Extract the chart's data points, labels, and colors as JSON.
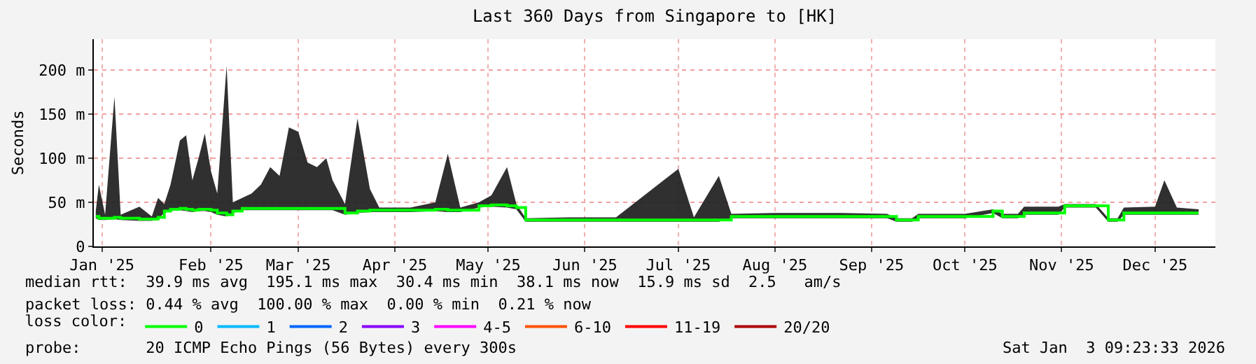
{
  "chart_data": {
    "type": "step",
    "title": "Last 360 Days from Singapore to [HK]",
    "ylabel": "Seconds",
    "legend_title": "loss color:",
    "x": [
      "2025-01-09",
      "2025-01-10",
      "2025-01-12",
      "2025-01-15",
      "2025-01-17",
      "2025-01-23",
      "2025-01-27",
      "2025-01-29",
      "2025-01-31",
      "2025-02-02",
      "2025-02-05",
      "2025-02-07",
      "2025-02-09",
      "2025-02-11",
      "2025-02-13",
      "2025-02-15",
      "2025-02-17",
      "2025-02-20",
      "2025-02-22",
      "2025-02-25",
      "2025-02-28",
      "2025-03-03",
      "2025-03-06",
      "2025-03-09",
      "2025-03-12",
      "2025-03-15",
      "2025-03-18",
      "2025-03-21",
      "2025-03-24",
      "2025-03-26",
      "2025-03-30",
      "2025-04-03",
      "2025-04-07",
      "2025-04-10",
      "2025-04-20",
      "2025-04-28",
      "2025-05-02",
      "2025-05-06",
      "2025-05-12",
      "2025-05-16",
      "2025-05-21",
      "2025-05-24",
      "2025-05-27",
      "2025-06-10",
      "2025-06-25",
      "2025-07-15",
      "2025-07-20",
      "2025-07-28",
      "2025-08-01",
      "2025-08-15",
      "2025-08-25",
      "2025-09-05",
      "2025-09-20",
      "2025-09-23",
      "2025-09-28",
      "2025-09-30",
      "2025-10-15",
      "2025-10-24",
      "2025-10-27",
      "2025-11-01",
      "2025-11-03",
      "2025-11-14",
      "2025-11-16",
      "2025-11-26",
      "2025-11-30",
      "2025-12-03",
      "2025-12-05",
      "2025-12-15",
      "2025-12-18",
      "2025-12-22",
      "2025-12-29"
    ],
    "series": [
      {
        "name": "0",
        "color": "#00ff00",
        "values": [
          34,
          32,
          32,
          33,
          32,
          31,
          31,
          33,
          40,
          42,
          43,
          42,
          41,
          42,
          42,
          41,
          38,
          36,
          40,
          43,
          43,
          43,
          43,
          43,
          43,
          43,
          43,
          43,
          43,
          43,
          38,
          40,
          41,
          41,
          41,
          42,
          41,
          41,
          46,
          47,
          46,
          44,
          30,
          30,
          30,
          30,
          30,
          30,
          34,
          34,
          34,
          34,
          34,
          30,
          30,
          34,
          34,
          40,
          34,
          34,
          38,
          38,
          46,
          46,
          30,
          30,
          38,
          38,
          38,
          38,
          38
        ],
        "lower": [
          32,
          30,
          30,
          31,
          30,
          29,
          29,
          31,
          38,
          40,
          41,
          40,
          39,
          40,
          40,
          39,
          36,
          34,
          38,
          41,
          41,
          41,
          41,
          41,
          41,
          41,
          41,
          41,
          41,
          41,
          36,
          38,
          39,
          39,
          39,
          40,
          39,
          39,
          44,
          45,
          44,
          42,
          28,
          28,
          28,
          28,
          28,
          28,
          32,
          32,
          32,
          32,
          32,
          28,
          28,
          32,
          32,
          38,
          32,
          32,
          36,
          36,
          44,
          44,
          28,
          28,
          36,
          36,
          36,
          36,
          36
        ],
        "upper": [
          40,
          70,
          36,
          170,
          36,
          45,
          34,
          55,
          48,
          70,
          120,
          126,
          75,
          100,
          128,
          85,
          60,
          205,
          50,
          55,
          60,
          70,
          90,
          80,
          135,
          130,
          95,
          90,
          100,
          75,
          48,
          145,
          65,
          44,
          44,
          50,
          105,
          44,
          50,
          58,
          90,
          48,
          32,
          33,
          33,
          88,
          33,
          80,
          37,
          38,
          38,
          38,
          37,
          32,
          32,
          37,
          37,
          42,
          37,
          37,
          45,
          45,
          48,
          48,
          32,
          32,
          44,
          45,
          75,
          44,
          42
        ]
      },
      {
        "name": "1",
        "color": "#00bbff",
        "values": [
          null,
          null,
          null,
          null,
          null,
          null,
          null,
          null,
          null,
          null,
          null,
          null,
          null,
          null,
          null,
          null,
          null,
          null,
          null,
          null,
          null,
          null,
          null,
          null,
          null,
          null,
          null,
          null,
          null,
          null,
          null,
          null,
          null,
          null,
          null,
          null,
          null,
          null,
          null,
          null,
          null,
          null,
          null,
          null,
          null,
          null,
          null,
          null,
          null,
          null,
          null,
          null,
          null,
          null,
          null,
          null,
          null,
          null,
          null,
          null,
          null,
          null,
          null,
          null,
          null,
          null,
          null,
          null,
          null,
          null,
          null
        ]
      },
      {
        "name": "2",
        "color": "#0066ff",
        "values": [
          null,
          null,
          null,
          null,
          null,
          null,
          null,
          null,
          null,
          null,
          null,
          null,
          null,
          null,
          null,
          null,
          null,
          null,
          null,
          null,
          null,
          null,
          null,
          null,
          null,
          null,
          null,
          null,
          null,
          null,
          null,
          null,
          null,
          null,
          null,
          null,
          null,
          null,
          null,
          null,
          null,
          null,
          null,
          null,
          null,
          null,
          null,
          null,
          null,
          null,
          null,
          null,
          null,
          null,
          null,
          null,
          null,
          null,
          null,
          null,
          null,
          null,
          null,
          null,
          null,
          null,
          null,
          null,
          null,
          null,
          null
        ]
      },
      {
        "name": "3",
        "color": "#8800ff",
        "values": [
          null,
          null,
          null,
          null,
          null,
          null,
          null,
          null,
          null,
          null,
          null,
          null,
          null,
          null,
          null,
          null,
          null,
          null,
          null,
          null,
          null,
          null,
          null,
          null,
          null,
          null,
          null,
          null,
          null,
          null,
          null,
          null,
          null,
          null,
          null,
          null,
          null,
          null,
          null,
          null,
          null,
          null,
          null,
          null,
          null,
          null,
          null,
          null,
          null,
          null,
          null,
          null,
          null,
          null,
          null,
          null,
          null,
          null,
          null,
          null,
          null,
          null,
          null,
          null,
          null,
          null,
          null,
          null,
          null,
          null,
          null
        ]
      },
      {
        "name": "4-5",
        "color": "#ff00ff",
        "values": [
          null,
          null,
          null,
          null,
          null,
          null,
          null,
          null,
          null,
          null,
          null,
          null,
          null,
          null,
          null,
          null,
          null,
          null,
          null,
          null,
          null,
          null,
          null,
          null,
          null,
          null,
          null,
          null,
          null,
          null,
          null,
          null,
          null,
          null,
          null,
          null,
          null,
          null,
          null,
          null,
          null,
          null,
          null,
          null,
          null,
          null,
          null,
          null,
          null,
          null,
          null,
          null,
          null,
          null,
          null,
          null,
          null,
          null,
          null,
          null,
          null,
          null,
          null,
          null,
          null,
          null,
          null,
          null,
          null,
          null,
          null
        ]
      },
      {
        "name": "6-10",
        "color": "#ff5500",
        "values": [
          null,
          null,
          null,
          null,
          null,
          null,
          null,
          null,
          null,
          null,
          null,
          null,
          null,
          null,
          null,
          null,
          null,
          null,
          null,
          null,
          null,
          null,
          null,
          null,
          null,
          null,
          null,
          null,
          null,
          null,
          null,
          null,
          null,
          null,
          null,
          null,
          null,
          null,
          null,
          null,
          null,
          null,
          null,
          null,
          null,
          null,
          null,
          null,
          null,
          null,
          null,
          null,
          null,
          null,
          null,
          null,
          null,
          null,
          null,
          null,
          null,
          null,
          null,
          null,
          null,
          null,
          null,
          null,
          null,
          null,
          null
        ]
      },
      {
        "name": "11-19",
        "color": "#ff0000",
        "values": [
          null,
          null,
          null,
          null,
          null,
          null,
          null,
          null,
          null,
          null,
          null,
          null,
          null,
          null,
          null,
          null,
          null,
          null,
          null,
          null,
          null,
          null,
          null,
          null,
          null,
          null,
          null,
          null,
          null,
          null,
          null,
          null,
          null,
          null,
          null,
          null,
          null,
          null,
          null,
          null,
          null,
          null,
          null,
          null,
          null,
          null,
          null,
          null,
          null,
          null,
          null,
          null,
          null,
          null,
          null,
          null,
          null,
          null,
          null,
          null,
          null,
          null,
          null,
          null,
          null,
          null,
          null,
          null,
          null,
          null,
          null
        ]
      },
      {
        "name": "20/20",
        "color": "#aa0000",
        "values": [
          null,
          null,
          null,
          null,
          null,
          null,
          null,
          null,
          null,
          null,
          null,
          null,
          null,
          null,
          null,
          null,
          null,
          null,
          null,
          null,
          null,
          null,
          null,
          null,
          null,
          null,
          null,
          null,
          null,
          null,
          null,
          null,
          null,
          null,
          null,
          null,
          null,
          null,
          null,
          null,
          null,
          null,
          null,
          null,
          null,
          null,
          null,
          null,
          null,
          null,
          null,
          null,
          null,
          null,
          null,
          null,
          null,
          null,
          null,
          null,
          null,
          null,
          null,
          null,
          null,
          null,
          null,
          null,
          null,
          null,
          null
        ]
      }
    ],
    "xlim": [
      "2025-01-08T09:00",
      "2026-01-03T09:00"
    ],
    "xticks": [
      {
        "value": "2025-01-11",
        "label": "Jan '25"
      },
      {
        "value": "2025-02-15",
        "label": "Feb '25"
      },
      {
        "value": "2025-03-15",
        "label": "Mar '25"
      },
      {
        "value": "2025-04-15",
        "label": "Apr '25"
      },
      {
        "value": "2025-05-15",
        "label": "May '25"
      },
      {
        "value": "2025-06-15",
        "label": "Jun '25"
      },
      {
        "value": "2025-07-15",
        "label": "Jul '25"
      },
      {
        "value": "2025-08-15",
        "label": "Aug '25"
      },
      {
        "value": "2025-09-15",
        "label": "Sep '25"
      },
      {
        "value": "2025-10-15",
        "label": "Oct '25"
      },
      {
        "value": "2025-11-15",
        "label": "Nov '25"
      },
      {
        "value": "2025-12-15",
        "label": "Dec '25"
      }
    ],
    "ylim": [
      0,
      235
    ],
    "yticks": [
      0,
      {
        "value": 50,
        "label": "50 m"
      },
      {
        "value": 100,
        "label": "100 m"
      },
      {
        "value": 150,
        "label": "150 m"
      },
      {
        "value": 200,
        "label": "200 m"
      }
    ],
    "grid": true,
    "legend": "bottom",
    "marker": "none",
    "line_style": "solid",
    "annotations": [
      "median rtt:  39.9 ms avg  195.1 ms max  30.4 ms min  38.1 ms now  15.9 ms sd  2.5   am/s",
      "packet loss: 0.44 % avg  100.00 % max  0.00 % min  0.21 % now",
      "probe:       20 ICMP Echo Pings (56 Bytes) every 300s",
      "Sat Jan  3 09:23:33 2026"
    ]
  }
}
